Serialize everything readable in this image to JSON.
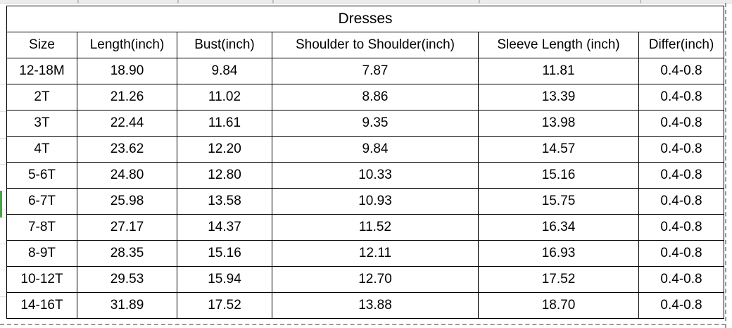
{
  "title": "Dresses",
  "table": {
    "columns": [
      "Size",
      "Length(inch)",
      "Bust(inch)",
      "Shoulder to Shoulder(inch)",
      "Sleeve Length (inch)",
      "Differ(inch)"
    ],
    "rows": [
      [
        "12-18M",
        "18.90",
        "9.84",
        "7.87",
        "11.81",
        "0.4-0.8"
      ],
      [
        "2T",
        "21.26",
        "11.02",
        "8.86",
        "13.39",
        "0.4-0.8"
      ],
      [
        "3T",
        "22.44",
        "11.61",
        "9.35",
        "13.98",
        "0.4-0.8"
      ],
      [
        "4T",
        "23.62",
        "12.20",
        "9.84",
        "14.57",
        "0.4-0.8"
      ],
      [
        "5-6T",
        "24.80",
        "12.80",
        "10.33",
        "15.16",
        "0.4-0.8"
      ],
      [
        "6-7T",
        "25.98",
        "13.58",
        "10.93",
        "15.75",
        "0.4-0.8"
      ],
      [
        "7-8T",
        "27.17",
        "14.37",
        "11.52",
        "16.34",
        "0.4-0.8"
      ],
      [
        "8-9T",
        "28.35",
        "15.16",
        "12.11",
        "16.93",
        "0.4-0.8"
      ],
      [
        "10-12T",
        "29.53",
        "15.94",
        "12.70",
        "17.52",
        "0.4-0.8"
      ],
      [
        "14-16T",
        "31.89",
        "17.52",
        "13.88",
        "18.70",
        "0.4-0.8"
      ]
    ],
    "selected_row": "6-7T",
    "selected_row_index": 5
  },
  "colors": {
    "selection_green": "#46a346",
    "table_border": "#000000",
    "page_break_dash": "#9a9a9a",
    "gridline": "#d6d6d6"
  }
}
